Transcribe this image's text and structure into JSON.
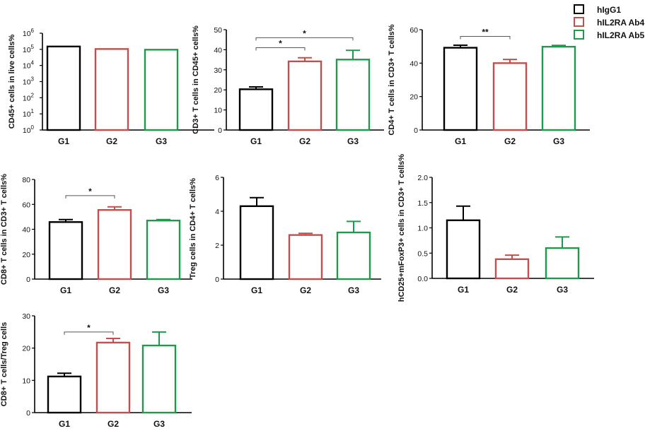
{
  "legend": [
    {
      "label": "hIgG1",
      "color": "#000000"
    },
    {
      "label": "hIL2RA Ab4",
      "color": "#c0504d"
    },
    {
      "label": "hIL2RA Ab5",
      "color": "#1f9a4a"
    }
  ],
  "chart_data": [
    {
      "type": "bar",
      "ylabel": "CD45+ cells in live cells%",
      "yscale": "log",
      "ylim": [
        1,
        1000000
      ],
      "yticks": [
        1,
        10,
        100,
        1000,
        10000,
        100000,
        1000000
      ],
      "ytick_labels": [
        {
          "base": "10",
          "exp": "0"
        },
        {
          "base": "10",
          "exp": "1"
        },
        {
          "base": "10",
          "exp": "2"
        },
        {
          "base": "10",
          "exp": "3"
        },
        {
          "base": "10",
          "exp": "4"
        },
        {
          "base": "10",
          "exp": "5"
        },
        {
          "base": "10",
          "exp": "6"
        }
      ],
      "categories": [
        "G1",
        "G2",
        "G3"
      ],
      "values": [
        150000,
        105000,
        95000
      ],
      "errors": [
        0,
        0,
        0
      ],
      "significance": []
    },
    {
      "type": "bar",
      "ylabel": "CD3+ T cells in CD45+ cells%",
      "ylim": [
        0,
        50
      ],
      "yticks": [
        0,
        10,
        20,
        30,
        40,
        50
      ],
      "categories": [
        "G1",
        "G2",
        "G3"
      ],
      "values": [
        20.3,
        34.2,
        35.1
      ],
      "errors": [
        1.2,
        1.8,
        4.6
      ],
      "significance": [
        {
          "from": 0,
          "to": 1,
          "label": "*",
          "y": 41
        },
        {
          "from": 0,
          "to": 2,
          "label": "*",
          "y": 46
        }
      ]
    },
    {
      "type": "bar",
      "ylabel": "CD4+ T cells in CD3+ T cells%",
      "ylim": [
        0,
        60
      ],
      "yticks": [
        0,
        20,
        40,
        60
      ],
      "categories": [
        "G1",
        "G2",
        "G3"
      ],
      "values": [
        49.2,
        40.0,
        49.8
      ],
      "errors": [
        1.5,
        2.2,
        0.8
      ],
      "significance": [
        {
          "from": 0,
          "to": 1,
          "label": "**",
          "y": 56
        }
      ]
    },
    {
      "type": "bar",
      "ylabel": "CD8+ T cells in CD3+ T cells%",
      "ylim": [
        0,
        80
      ],
      "yticks": [
        0,
        20,
        40,
        60,
        80
      ],
      "categories": [
        "G1",
        "G2",
        "G3"
      ],
      "values": [
        45.8,
        55.5,
        47.0
      ],
      "errors": [
        2.0,
        2.5,
        0.8
      ],
      "significance": [
        {
          "from": 0,
          "to": 1,
          "label": "*",
          "y": 67
        }
      ]
    },
    {
      "type": "bar",
      "ylabel": "Treg cells in CD4+ T cells%",
      "ylim": [
        0,
        6
      ],
      "yticks": [
        0,
        2,
        4,
        6
      ],
      "categories": [
        "G1",
        "G2",
        "G3"
      ],
      "values": [
        4.3,
        2.6,
        2.75
      ],
      "errors": [
        0.5,
        0.1,
        0.65
      ],
      "significance": []
    },
    {
      "type": "bar",
      "ylabel": "hCD25+mFoxP3+ cells in CD3+ T cells%",
      "ylim": [
        0,
        2.0
      ],
      "yticks": [
        0,
        0.5,
        1.0,
        1.5,
        2.0
      ],
      "ytick_labels": [
        "0.0",
        "0.5",
        "1.0",
        "1.5",
        "2.0"
      ],
      "categories": [
        "G1",
        "G2",
        "G3"
      ],
      "values": [
        1.15,
        0.38,
        0.6
      ],
      "errors": [
        0.28,
        0.08,
        0.22
      ],
      "significance": []
    },
    {
      "type": "bar",
      "ylabel": "CD8+ T cells/Treg cells",
      "ylim": [
        0,
        30
      ],
      "yticks": [
        0,
        10,
        20,
        30
      ],
      "categories": [
        "G1",
        "G2",
        "G3"
      ],
      "values": [
        11.2,
        21.7,
        20.8
      ],
      "errors": [
        1.0,
        1.3,
        4.2
      ],
      "significance": [
        {
          "from": 0,
          "to": 1,
          "label": "*",
          "y": 25
        }
      ]
    }
  ]
}
